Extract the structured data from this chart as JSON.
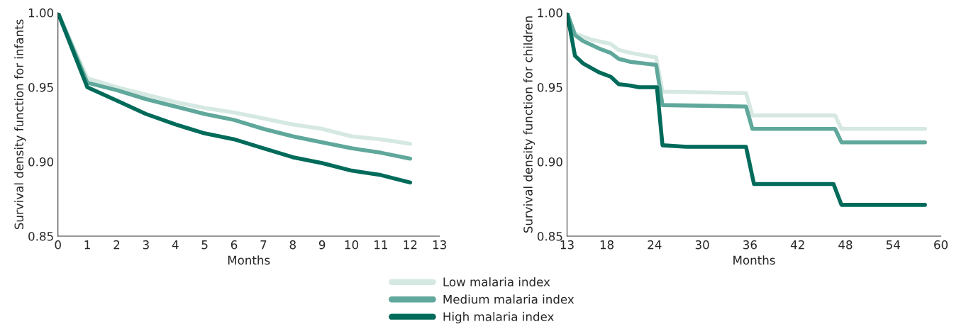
{
  "chart_data": [
    {
      "type": "line",
      "xlabel": "Months",
      "ylabel": "Survival density function for infants",
      "xlim": [
        0,
        13
      ],
      "xticks": [
        0,
        1,
        2,
        3,
        4,
        5,
        6,
        7,
        8,
        9,
        10,
        11,
        12,
        13
      ],
      "ylim": [
        0.85,
        1.0
      ],
      "yticks": [
        {
          "value": 0.85,
          "label": "0.85"
        },
        {
          "value": 0.9,
          "label": "0.90"
        },
        {
          "value": 0.95,
          "label": "0.95"
        },
        {
          "value": 1.0,
          "label": "1.00"
        }
      ],
      "grid": false,
      "legend": "bottom",
      "x": [
        0,
        1,
        2,
        3,
        4,
        5,
        6,
        7,
        8,
        9,
        10,
        11,
        12
      ],
      "series": [
        {
          "name": "Low malaria index",
          "color": "#d5e8e2",
          "values": [
            1.0,
            0.956,
            0.95,
            0.945,
            0.94,
            0.936,
            0.933,
            0.929,
            0.925,
            0.922,
            0.917,
            0.915,
            0.912
          ]
        },
        {
          "name": "Medium malaria index",
          "color": "#5fa89b",
          "values": [
            1.0,
            0.953,
            0.948,
            0.942,
            0.937,
            0.932,
            0.928,
            0.922,
            0.917,
            0.913,
            0.909,
            0.906,
            0.902
          ]
        },
        {
          "name": "High malaria index",
          "color": "#006b5a",
          "values": [
            1.0,
            0.95,
            0.941,
            0.932,
            0.925,
            0.919,
            0.915,
            0.909,
            0.903,
            0.899,
            0.894,
            0.891,
            0.886
          ]
        }
      ]
    },
    {
      "type": "line",
      "xlabel": "Months",
      "ylabel": "Survival density function for children",
      "xlim": [
        13,
        60
      ],
      "xticks": [
        13,
        18,
        24,
        30,
        36,
        42,
        48,
        54,
        60
      ],
      "ylim": [
        0.85,
        1.0
      ],
      "yticks": [
        {
          "value": 0.85,
          "label": "0.85"
        },
        {
          "value": 0.9,
          "label": "0.90"
        },
        {
          "value": 0.95,
          "label": "0.95"
        },
        {
          "value": 1.0,
          "label": "1.00"
        }
      ],
      "grid": false,
      "legend": "bottom",
      "series": [
        {
          "name": "Low malaria index",
          "color": "#d5e8e2",
          "x": [
            13,
            14,
            16,
            18.5,
            19.5,
            21,
            24.2,
            25,
            35.5,
            36.3,
            46.7,
            47.5,
            58
          ],
          "values": [
            1.0,
            0.986,
            0.982,
            0.979,
            0.975,
            0.973,
            0.97,
            0.947,
            0.946,
            0.931,
            0.931,
            0.922,
            0.922
          ]
        },
        {
          "name": "Medium malaria index",
          "color": "#5fa89b",
          "x": [
            13,
            14,
            15,
            17,
            18.5,
            19.5,
            21,
            24.2,
            25,
            35.5,
            36.3,
            46.7,
            47.5,
            58
          ],
          "values": [
            1.0,
            0.985,
            0.981,
            0.976,
            0.973,
            0.969,
            0.967,
            0.965,
            0.938,
            0.937,
            0.922,
            0.922,
            0.913,
            0.913
          ]
        },
        {
          "name": "High malaria index",
          "color": "#006b5a",
          "x": [
            13,
            14,
            15,
            17,
            18.5,
            19.5,
            21,
            22,
            24.3,
            25,
            28,
            35.5,
            36.5,
            46.5,
            47.5,
            58
          ],
          "values": [
            1.0,
            0.971,
            0.966,
            0.96,
            0.957,
            0.952,
            0.951,
            0.95,
            0.95,
            0.911,
            0.91,
            0.91,
            0.885,
            0.885,
            0.871,
            0.871
          ]
        }
      ]
    }
  ]
}
